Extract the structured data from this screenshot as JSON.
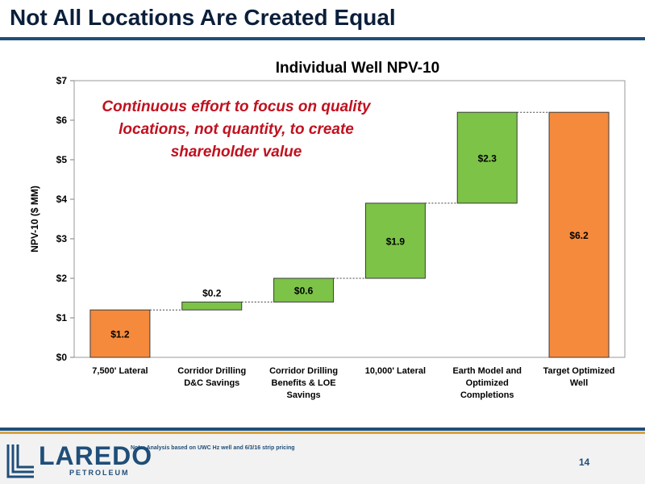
{
  "slide": {
    "title": "Not All Locations Are Created Equal",
    "footnote": "Note: Analysis based on UWC Hz well and 6/3/16 strip pricing",
    "page_number": "14"
  },
  "logo": {
    "name": "LAREDO",
    "sub": "PETROLEUM",
    "color": "#1f4e79"
  },
  "chart_data": {
    "type": "bar",
    "subtype": "waterfall",
    "title": "Individual Well NPV-10",
    "ylabel": "NPV-10 ($ MM)",
    "xlabel": "",
    "ylim": [
      0,
      7
    ],
    "yticks": [
      0,
      1,
      2,
      3,
      4,
      5,
      6,
      7
    ],
    "ytick_labels": [
      "$0",
      "$1",
      "$2",
      "$3",
      "$4",
      "$5",
      "$6",
      "$7"
    ],
    "annotation": {
      "lines": [
        "Continuous effort to focus on quality",
        "locations, not quantity, to create",
        "shareholder value"
      ],
      "color": "#c0111f"
    },
    "colors": {
      "total": "#f58a3c",
      "increment": "#7cc348"
    },
    "bars": [
      {
        "label_lines": [
          "7,500' Lateral"
        ],
        "start": 0,
        "end": 1.2,
        "value_label": "$1.2",
        "kind": "total"
      },
      {
        "label_lines": [
          "Corridor Drilling",
          "D&C Savings"
        ],
        "start": 1.2,
        "end": 1.4,
        "value_label": "$0.2",
        "kind": "increment"
      },
      {
        "label_lines": [
          "Corridor Drilling",
          "Benefits & LOE",
          "Savings"
        ],
        "start": 1.4,
        "end": 2.0,
        "value_label": "$0.6",
        "kind": "increment"
      },
      {
        "label_lines": [
          "10,000' Lateral"
        ],
        "start": 2.0,
        "end": 3.9,
        "value_label": "$1.9",
        "kind": "increment"
      },
      {
        "label_lines": [
          "Earth Model and",
          "Optimized",
          "Completions"
        ],
        "start": 3.9,
        "end": 6.2,
        "value_label": "$2.3",
        "kind": "increment"
      },
      {
        "label_lines": [
          "Target Optimized",
          "Well"
        ],
        "start": 0,
        "end": 6.2,
        "value_label": "$6.2",
        "kind": "total"
      }
    ],
    "grid": false,
    "legend": "none"
  }
}
